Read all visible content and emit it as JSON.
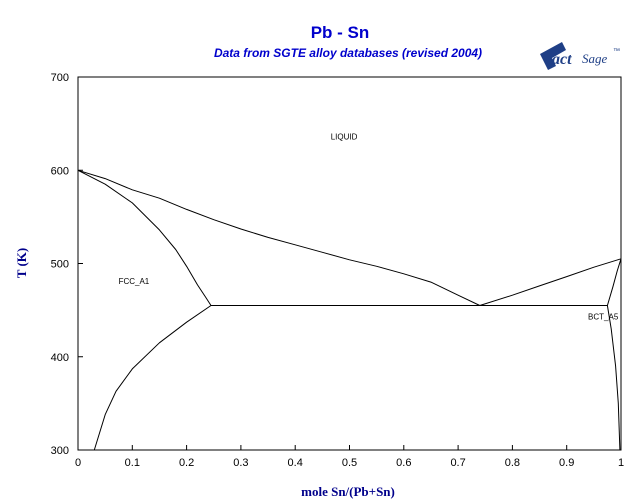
{
  "chart_data": {
    "type": "line",
    "title": "Pb - Sn",
    "subtitle": "Data from SGTE alloy databases (revised 2004)",
    "xlabel": "mole Sn/(Pb+Sn)",
    "ylabel": "T (K)",
    "xlim": [
      0,
      1
    ],
    "ylim": [
      300,
      700
    ],
    "x_ticks": [
      0,
      0.1,
      0.2,
      0.3,
      0.4,
      0.5,
      0.6,
      0.7,
      0.8,
      0.9,
      1
    ],
    "x_tick_labels": [
      "0",
      "0.1",
      "0.2",
      "0.3",
      "0.4",
      "0.5",
      "0.6",
      "0.7",
      "0.8",
      "0.9",
      "1"
    ],
    "y_ticks": [
      300,
      400,
      500,
      600,
      700
    ],
    "y_tick_labels": [
      "300",
      "400",
      "500",
      "600",
      "700"
    ],
    "grid": false,
    "logo": {
      "brand": "FactSage",
      "mark": "F",
      "text_act": "act",
      "text_sage": "Sage",
      "tm": "™"
    },
    "region_labels": [
      {
        "text": "LIQUID",
        "x": 0.49,
        "y": 633
      },
      {
        "text": "FCC_A1",
        "x": 0.103,
        "y": 478
      },
      {
        "text": "BCT_A5",
        "x": 0.995,
        "y": 440
      }
    ],
    "series": [
      {
        "id": "liquidus-left",
        "points": [
          [
            0,
            600
          ],
          [
            0.05,
            591
          ],
          [
            0.1,
            579
          ],
          [
            0.15,
            570
          ],
          [
            0.2,
            558
          ],
          [
            0.25,
            547
          ],
          [
            0.3,
            537
          ],
          [
            0.35,
            528
          ],
          [
            0.4,
            520
          ],
          [
            0.45,
            512
          ],
          [
            0.5,
            504
          ],
          [
            0.55,
            497
          ],
          [
            0.6,
            489
          ],
          [
            0.65,
            480
          ],
          [
            0.7,
            466
          ],
          [
            0.74,
            455
          ]
        ]
      },
      {
        "id": "solidus-left",
        "points": [
          [
            0,
            600
          ],
          [
            0.05,
            585
          ],
          [
            0.1,
            565
          ],
          [
            0.15,
            536
          ],
          [
            0.18,
            515
          ],
          [
            0.2,
            497
          ],
          [
            0.22,
            477
          ],
          [
            0.235,
            464
          ],
          [
            0.245,
            455
          ]
        ]
      },
      {
        "id": "solvus-left",
        "points": [
          [
            0.245,
            455
          ],
          [
            0.2,
            437
          ],
          [
            0.15,
            415
          ],
          [
            0.1,
            387
          ],
          [
            0.07,
            363
          ],
          [
            0.05,
            338
          ],
          [
            0.03,
            300
          ]
        ]
      },
      {
        "id": "liquidus-right",
        "points": [
          [
            0.74,
            455
          ],
          [
            0.8,
            466
          ],
          [
            0.85,
            476
          ],
          [
            0.9,
            486
          ],
          [
            0.95,
            496
          ],
          [
            1.0,
            505
          ]
        ]
      },
      {
        "id": "solidus-right",
        "points": [
          [
            0.975,
            455
          ],
          [
            0.985,
            475
          ],
          [
            0.993,
            492
          ],
          [
            1.0,
            505
          ]
        ]
      },
      {
        "id": "solvus-right",
        "points": [
          [
            0.975,
            455
          ],
          [
            0.982,
            430
          ],
          [
            0.99,
            390
          ],
          [
            0.995,
            350
          ],
          [
            0.998,
            300
          ]
        ]
      },
      {
        "id": "eutectic-line",
        "points": [
          [
            0.245,
            455
          ],
          [
            0.975,
            455
          ]
        ]
      }
    ]
  }
}
